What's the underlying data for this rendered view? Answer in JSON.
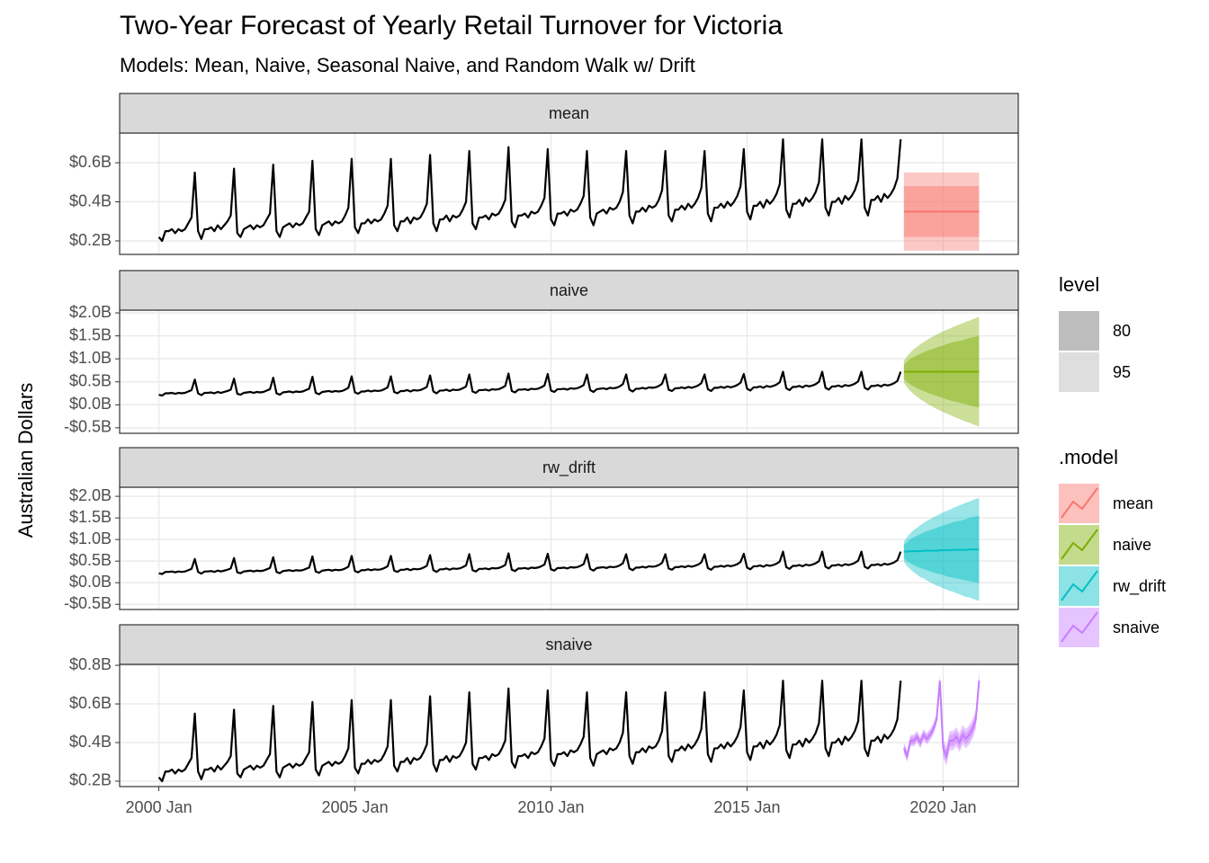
{
  "chart_data": {
    "type": "line",
    "title": "Two-Year Forecast of Yearly Retail Turnover for Victoria",
    "subtitle": "Models: Mean, Naive, Seasonal Naive, and Random Walk w/ Drift",
    "y_label": "Australian Dollars",
    "history_color": "#000000",
    "grid": true,
    "xlim": [
      "1999-01",
      "2021-12"
    ],
    "xticks": [
      {
        "value": "2000-01",
        "label": "2000 Jan"
      },
      {
        "value": "2005-01",
        "label": "2005 Jan"
      },
      {
        "value": "2010-01",
        "label": "2010 Jan"
      },
      {
        "value": "2015-01",
        "label": "2015 Jan"
      },
      {
        "value": "2020-01",
        "label": "2020 Jan"
      }
    ],
    "x": [
      "2000-01",
      "2000-02",
      "2000-03",
      "2000-04",
      "2000-05",
      "2000-06",
      "2000-07",
      "2000-08",
      "2000-09",
      "2000-10",
      "2000-11",
      "2000-12",
      "2001-01",
      "2001-02",
      "2001-03",
      "2001-04",
      "2001-05",
      "2001-06",
      "2001-07",
      "2001-08",
      "2001-09",
      "2001-10",
      "2001-11",
      "2001-12",
      "2002-01",
      "2002-02",
      "2002-03",
      "2002-04",
      "2002-05",
      "2002-06",
      "2002-07",
      "2002-08",
      "2002-09",
      "2002-10",
      "2002-11",
      "2002-12",
      "2003-01",
      "2003-02",
      "2003-03",
      "2003-04",
      "2003-05",
      "2003-06",
      "2003-07",
      "2003-08",
      "2003-09",
      "2003-10",
      "2003-11",
      "2003-12",
      "2004-01",
      "2004-02",
      "2004-03",
      "2004-04",
      "2004-05",
      "2004-06",
      "2004-07",
      "2004-08",
      "2004-09",
      "2004-10",
      "2004-11",
      "2004-12",
      "2005-01",
      "2005-02",
      "2005-03",
      "2005-04",
      "2005-05",
      "2005-06",
      "2005-07",
      "2005-08",
      "2005-09",
      "2005-10",
      "2005-11",
      "2005-12",
      "2006-01",
      "2006-02",
      "2006-03",
      "2006-04",
      "2006-05",
      "2006-06",
      "2006-07",
      "2006-08",
      "2006-09",
      "2006-10",
      "2006-11",
      "2006-12",
      "2007-01",
      "2007-02",
      "2007-03",
      "2007-04",
      "2007-05",
      "2007-06",
      "2007-07",
      "2007-08",
      "2007-09",
      "2007-10",
      "2007-11",
      "2007-12",
      "2008-01",
      "2008-02",
      "2008-03",
      "2008-04",
      "2008-05",
      "2008-06",
      "2008-07",
      "2008-08",
      "2008-09",
      "2008-10",
      "2008-11",
      "2008-12",
      "2009-01",
      "2009-02",
      "2009-03",
      "2009-04",
      "2009-05",
      "2009-06",
      "2009-07",
      "2009-08",
      "2009-09",
      "2009-10",
      "2009-11",
      "2009-12",
      "2010-01",
      "2010-02",
      "2010-03",
      "2010-04",
      "2010-05",
      "2010-06",
      "2010-07",
      "2010-08",
      "2010-09",
      "2010-10",
      "2010-11",
      "2010-12",
      "2011-01",
      "2011-02",
      "2011-03",
      "2011-04",
      "2011-05",
      "2011-06",
      "2011-07",
      "2011-08",
      "2011-09",
      "2011-10",
      "2011-11",
      "2011-12",
      "2012-01",
      "2012-02",
      "2012-03",
      "2012-04",
      "2012-05",
      "2012-06",
      "2012-07",
      "2012-08",
      "2012-09",
      "2012-10",
      "2012-11",
      "2012-12",
      "2013-01",
      "2013-02",
      "2013-03",
      "2013-04",
      "2013-05",
      "2013-06",
      "2013-07",
      "2013-08",
      "2013-09",
      "2013-10",
      "2013-11",
      "2013-12",
      "2014-01",
      "2014-02",
      "2014-03",
      "2014-04",
      "2014-05",
      "2014-06",
      "2014-07",
      "2014-08",
      "2014-09",
      "2014-10",
      "2014-11",
      "2014-12",
      "2015-01",
      "2015-02",
      "2015-03",
      "2015-04",
      "2015-05",
      "2015-06",
      "2015-07",
      "2015-08",
      "2015-09",
      "2015-10",
      "2015-11",
      "2015-12",
      "2016-01",
      "2016-02",
      "2016-03",
      "2016-04",
      "2016-05",
      "2016-06",
      "2016-07",
      "2016-08",
      "2016-09",
      "2016-10",
      "2016-11",
      "2016-12",
      "2017-01",
      "2017-02",
      "2017-03",
      "2017-04",
      "2017-05",
      "2017-06",
      "2017-07",
      "2017-08",
      "2017-09",
      "2017-10",
      "2017-11",
      "2017-12",
      "2018-01",
      "2018-02",
      "2018-03",
      "2018-04",
      "2018-05",
      "2018-06",
      "2018-07",
      "2018-08",
      "2018-09",
      "2018-10",
      "2018-11",
      "2018-12"
    ],
    "values": [
      0.22,
      0.2,
      0.25,
      0.25,
      0.26,
      0.24,
      0.26,
      0.25,
      0.26,
      0.29,
      0.32,
      0.55,
      0.25,
      0.21,
      0.26,
      0.26,
      0.27,
      0.25,
      0.28,
      0.26,
      0.28,
      0.3,
      0.33,
      0.57,
      0.24,
      0.22,
      0.26,
      0.27,
      0.28,
      0.26,
      0.28,
      0.27,
      0.28,
      0.31,
      0.34,
      0.59,
      0.25,
      0.22,
      0.27,
      0.28,
      0.29,
      0.27,
      0.29,
      0.28,
      0.29,
      0.32,
      0.35,
      0.61,
      0.26,
      0.23,
      0.28,
      0.29,
      0.3,
      0.28,
      0.3,
      0.29,
      0.3,
      0.33,
      0.37,
      0.62,
      0.27,
      0.24,
      0.29,
      0.29,
      0.31,
      0.29,
      0.31,
      0.3,
      0.31,
      0.34,
      0.38,
      0.62,
      0.28,
      0.25,
      0.3,
      0.3,
      0.32,
      0.29,
      0.32,
      0.31,
      0.32,
      0.35,
      0.39,
      0.64,
      0.29,
      0.25,
      0.31,
      0.31,
      0.33,
      0.3,
      0.33,
      0.32,
      0.33,
      0.36,
      0.4,
      0.66,
      0.29,
      0.26,
      0.32,
      0.32,
      0.33,
      0.31,
      0.34,
      0.33,
      0.34,
      0.37,
      0.41,
      0.68,
      0.3,
      0.27,
      0.33,
      0.33,
      0.34,
      0.32,
      0.35,
      0.34,
      0.35,
      0.38,
      0.42,
      0.67,
      0.31,
      0.28,
      0.34,
      0.34,
      0.35,
      0.33,
      0.36,
      0.35,
      0.36,
      0.39,
      0.43,
      0.66,
      0.32,
      0.28,
      0.34,
      0.35,
      0.36,
      0.34,
      0.37,
      0.36,
      0.37,
      0.4,
      0.45,
      0.66,
      0.33,
      0.29,
      0.35,
      0.35,
      0.37,
      0.35,
      0.38,
      0.37,
      0.38,
      0.41,
      0.46,
      0.66,
      0.33,
      0.3,
      0.36,
      0.36,
      0.38,
      0.36,
      0.39,
      0.37,
      0.39,
      0.42,
      0.47,
      0.66,
      0.34,
      0.3,
      0.37,
      0.37,
      0.39,
      0.37,
      0.4,
      0.38,
      0.4,
      0.43,
      0.48,
      0.67,
      0.35,
      0.31,
      0.38,
      0.38,
      0.4,
      0.37,
      0.41,
      0.39,
      0.41,
      0.44,
      0.49,
      0.72,
      0.36,
      0.32,
      0.39,
      0.39,
      0.41,
      0.38,
      0.42,
      0.4,
      0.42,
      0.45,
      0.5,
      0.72,
      0.37,
      0.33,
      0.4,
      0.4,
      0.42,
      0.39,
      0.43,
      0.41,
      0.43,
      0.46,
      0.51,
      0.72,
      0.37,
      0.33,
      0.41,
      0.41,
      0.43,
      0.4,
      0.44,
      0.42,
      0.44,
      0.47,
      0.52,
      0.72
    ],
    "forecast_x": [
      "2019-01",
      "2019-02",
      "2019-03",
      "2019-04",
      "2019-05",
      "2019-06",
      "2019-07",
      "2019-08",
      "2019-09",
      "2019-10",
      "2019-11",
      "2019-12",
      "2020-01",
      "2020-02",
      "2020-03",
      "2020-04",
      "2020-05",
      "2020-06",
      "2020-07",
      "2020-08",
      "2020-09",
      "2020-10",
      "2020-11",
      "2020-12"
    ],
    "level_title": "level",
    "levels": [
      {
        "name": 80,
        "color": "#bdbdbd"
      },
      {
        "name": 95,
        "color": "#dedede"
      }
    ],
    "legend_title": ".model",
    "facets": [
      {
        "name": "mean",
        "color": "#F8766D",
        "ylim": [
          0.131,
          0.752
        ],
        "yticks": [
          {
            "value": 0.2,
            "label": "$0.2B"
          },
          {
            "value": 0.4,
            "label": "$0.4B"
          },
          {
            "value": 0.6,
            "label": "$0.6B"
          }
        ],
        "forecast": {
          "values": [
            0.35,
            0.35,
            0.35,
            0.35,
            0.35,
            0.35,
            0.35,
            0.35,
            0.35,
            0.35,
            0.35,
            0.35,
            0.35,
            0.35,
            0.35,
            0.35,
            0.35,
            0.35,
            0.35,
            0.35,
            0.35,
            0.35,
            0.35,
            0.35
          ],
          "lo80": [
            0.22,
            0.22,
            0.22,
            0.22,
            0.22,
            0.22,
            0.22,
            0.22,
            0.22,
            0.22,
            0.22,
            0.22,
            0.22,
            0.22,
            0.22,
            0.22,
            0.22,
            0.22,
            0.22,
            0.22,
            0.22,
            0.22,
            0.22,
            0.22
          ],
          "hi80": [
            0.48,
            0.48,
            0.48,
            0.48,
            0.48,
            0.48,
            0.48,
            0.48,
            0.48,
            0.48,
            0.48,
            0.48,
            0.48,
            0.48,
            0.48,
            0.48,
            0.48,
            0.48,
            0.48,
            0.48,
            0.48,
            0.48,
            0.48,
            0.48
          ],
          "lo95": [
            0.15,
            0.15,
            0.15,
            0.15,
            0.15,
            0.15,
            0.15,
            0.15,
            0.15,
            0.15,
            0.15,
            0.15,
            0.15,
            0.15,
            0.15,
            0.15,
            0.15,
            0.15,
            0.15,
            0.15,
            0.15,
            0.15,
            0.15,
            0.15
          ],
          "hi95": [
            0.55,
            0.55,
            0.55,
            0.55,
            0.55,
            0.55,
            0.55,
            0.55,
            0.55,
            0.55,
            0.55,
            0.55,
            0.55,
            0.55,
            0.55,
            0.55,
            0.55,
            0.55,
            0.55,
            0.55,
            0.55,
            0.55,
            0.55,
            0.55
          ]
        }
      },
      {
        "name": "naive",
        "color": "#7CAE00",
        "ylim": [
          -0.62,
          2.06
        ],
        "yticks": [
          {
            "value": -0.5,
            "label": "-$0.5B"
          },
          {
            "value": 0,
            "label": "$0.0B"
          },
          {
            "value": 0.5,
            "label": "$0.5B"
          },
          {
            "value": 1,
            "label": "$1.0B"
          },
          {
            "value": 1.5,
            "label": "$1.5B"
          },
          {
            "value": 2,
            "label": "$2.0B"
          }
        ],
        "forecast": {
          "values": [
            0.72,
            0.72,
            0.72,
            0.72,
            0.72,
            0.72,
            0.72,
            0.72,
            0.72,
            0.72,
            0.72,
            0.72,
            0.72,
            0.72,
            0.72,
            0.72,
            0.72,
            0.72,
            0.72,
            0.72,
            0.72,
            0.72,
            0.72,
            0.72
          ],
          "lo80": [
            0.56,
            0.5,
            0.44,
            0.4,
            0.36,
            0.33,
            0.3,
            0.27,
            0.24,
            0.22,
            0.19,
            0.17,
            0.15,
            0.12,
            0.1,
            0.08,
            0.06,
            0.05,
            0.03,
            0.01,
            -0.01,
            -0.03,
            -0.04,
            -0.06
          ],
          "hi80": [
            0.88,
            0.94,
            1.0,
            1.04,
            1.08,
            1.11,
            1.14,
            1.17,
            1.2,
            1.22,
            1.25,
            1.27,
            1.29,
            1.32,
            1.34,
            1.36,
            1.38,
            1.39,
            1.41,
            1.43,
            1.45,
            1.47,
            1.48,
            1.5
          ],
          "lo95": [
            0.48,
            0.38,
            0.3,
            0.23,
            0.18,
            0.12,
            0.08,
            0.03,
            -0.01,
            -0.05,
            -0.09,
            -0.12,
            -0.16,
            -0.19,
            -0.22,
            -0.25,
            -0.28,
            -0.31,
            -0.34,
            -0.37,
            -0.39,
            -0.42,
            -0.45,
            -0.47
          ],
          "hi95": [
            0.96,
            1.06,
            1.14,
            1.21,
            1.26,
            1.32,
            1.36,
            1.41,
            1.45,
            1.49,
            1.53,
            1.56,
            1.6,
            1.63,
            1.66,
            1.69,
            1.72,
            1.75,
            1.78,
            1.81,
            1.83,
            1.86,
            1.89,
            1.91
          ]
        }
      },
      {
        "name": "rw_drift",
        "color": "#00BFC4",
        "ylim": [
          -0.62,
          2.21
        ],
        "yticks": [
          {
            "value": -0.5,
            "label": "-$0.5B"
          },
          {
            "value": 0,
            "label": "$0.0B"
          },
          {
            "value": 0.5,
            "label": "$0.5B"
          },
          {
            "value": 1,
            "label": "$1.0B"
          },
          {
            "value": 1.5,
            "label": "$1.5B"
          },
          {
            "value": 2,
            "label": "$2.0B"
          }
        ],
        "forecast": {
          "values": [
            0.72,
            0.72,
            0.73,
            0.73,
            0.73,
            0.73,
            0.74,
            0.74,
            0.74,
            0.74,
            0.74,
            0.75,
            0.75,
            0.75,
            0.75,
            0.76,
            0.76,
            0.76,
            0.76,
            0.76,
            0.77,
            0.77,
            0.77,
            0.77
          ],
          "lo80": [
            0.56,
            0.5,
            0.45,
            0.41,
            0.37,
            0.34,
            0.32,
            0.29,
            0.26,
            0.24,
            0.21,
            0.2,
            0.18,
            0.15,
            0.13,
            0.12,
            0.1,
            0.09,
            0.07,
            0.05,
            0.04,
            0.02,
            0.01,
            -0.01
          ],
          "hi80": [
            0.88,
            0.94,
            1.01,
            1.05,
            1.09,
            1.12,
            1.16,
            1.19,
            1.22,
            1.24,
            1.27,
            1.3,
            1.32,
            1.35,
            1.37,
            1.4,
            1.42,
            1.43,
            1.45,
            1.47,
            1.5,
            1.52,
            1.53,
            1.55
          ],
          "lo95": [
            0.48,
            0.38,
            0.31,
            0.24,
            0.19,
            0.13,
            0.1,
            0.05,
            0.01,
            -0.03,
            -0.07,
            -0.09,
            -0.13,
            -0.16,
            -0.19,
            -0.21,
            -0.24,
            -0.27,
            -0.3,
            -0.33,
            -0.34,
            -0.37,
            -0.4,
            -0.42
          ],
          "hi95": [
            0.96,
            1.06,
            1.15,
            1.22,
            1.27,
            1.33,
            1.38,
            1.43,
            1.47,
            1.51,
            1.55,
            1.59,
            1.63,
            1.66,
            1.69,
            1.73,
            1.76,
            1.79,
            1.82,
            1.85,
            1.88,
            1.91,
            1.94,
            1.96
          ]
        }
      },
      {
        "name": "snaive",
        "color": "#C77CFF",
        "ylim": [
          0.172,
          0.805
        ],
        "yticks": [
          {
            "value": 0.2,
            "label": "$0.2B"
          },
          {
            "value": 0.4,
            "label": "$0.4B"
          },
          {
            "value": 0.6,
            "label": "$0.6B"
          },
          {
            "value": 0.8,
            "label": "$0.8B"
          }
        ],
        "forecast": {
          "values": [
            0.37,
            0.33,
            0.41,
            0.41,
            0.43,
            0.4,
            0.44,
            0.42,
            0.44,
            0.47,
            0.52,
            0.72,
            0.37,
            0.33,
            0.41,
            0.41,
            0.43,
            0.4,
            0.44,
            0.42,
            0.44,
            0.47,
            0.52,
            0.72
          ],
          "lo80": [
            0.35,
            0.31,
            0.39,
            0.39,
            0.41,
            0.38,
            0.42,
            0.4,
            0.42,
            0.45,
            0.5,
            0.7,
            0.34,
            0.3,
            0.38,
            0.38,
            0.4,
            0.37,
            0.41,
            0.39,
            0.41,
            0.44,
            0.49,
            0.69
          ],
          "hi80": [
            0.39,
            0.35,
            0.43,
            0.43,
            0.45,
            0.42,
            0.46,
            0.44,
            0.46,
            0.49,
            0.54,
            0.74,
            0.4,
            0.36,
            0.44,
            0.44,
            0.46,
            0.43,
            0.47,
            0.45,
            0.47,
            0.5,
            0.55,
            0.75
          ],
          "lo95": [
            0.34,
            0.3,
            0.38,
            0.38,
            0.4,
            0.37,
            0.41,
            0.39,
            0.41,
            0.44,
            0.49,
            0.69,
            0.32,
            0.28,
            0.36,
            0.36,
            0.38,
            0.35,
            0.39,
            0.37,
            0.39,
            0.42,
            0.47,
            0.67
          ],
          "hi95": [
            0.4,
            0.36,
            0.44,
            0.44,
            0.46,
            0.43,
            0.47,
            0.45,
            0.47,
            0.5,
            0.55,
            0.75,
            0.42,
            0.38,
            0.46,
            0.46,
            0.48,
            0.45,
            0.49,
            0.47,
            0.49,
            0.52,
            0.57,
            0.77
          ]
        }
      }
    ]
  }
}
